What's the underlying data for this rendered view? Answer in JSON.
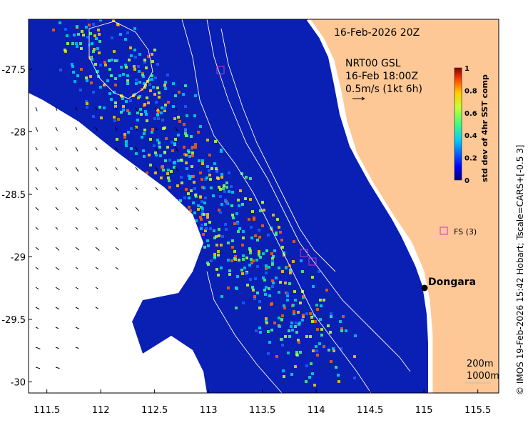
{
  "map": {
    "date_label": "16-Feb-2026 20Z",
    "vector_title": "NRT00 GSL",
    "vector_time": "16-Feb 18:00Z",
    "vector_scale": "0.5m/s (1kt 6h)",
    "x_ticks": [
      "111.5",
      "112",
      "112.5",
      "113",
      "113.5",
      "114",
      "114.5",
      "115",
      "115.5"
    ],
    "x_tick_values": [
      111.5,
      112,
      112.5,
      113,
      113.5,
      114,
      114.5,
      115,
      115.5
    ],
    "y_ticks": [
      "-27.5",
      "-28",
      "-28.5",
      "-29",
      "-29.5",
      "-30"
    ],
    "y_tick_values": [
      -27.5,
      -28,
      -28.5,
      -29,
      -29.5,
      -30
    ],
    "colorbar": {
      "label": "std dev of 4hr SST comp",
      "ticks": [
        "1",
        "0.8",
        "0.6",
        "0.4",
        "0.2",
        "0"
      ],
      "tick_values": [
        1,
        0.8,
        0.6,
        0.4,
        0.2,
        0
      ]
    },
    "place": "Dongara",
    "station_label": "FS (3)",
    "depth_legend": [
      "200m",
      "1000m"
    ],
    "credit": "© IMOS 19-Feb-2026 15:42 Hobart; Tscale=CARS+[-0.5 3]",
    "colors": {
      "land": "#fdc896",
      "marker": "#cc33cc",
      "background": "#ffffff"
    }
  }
}
